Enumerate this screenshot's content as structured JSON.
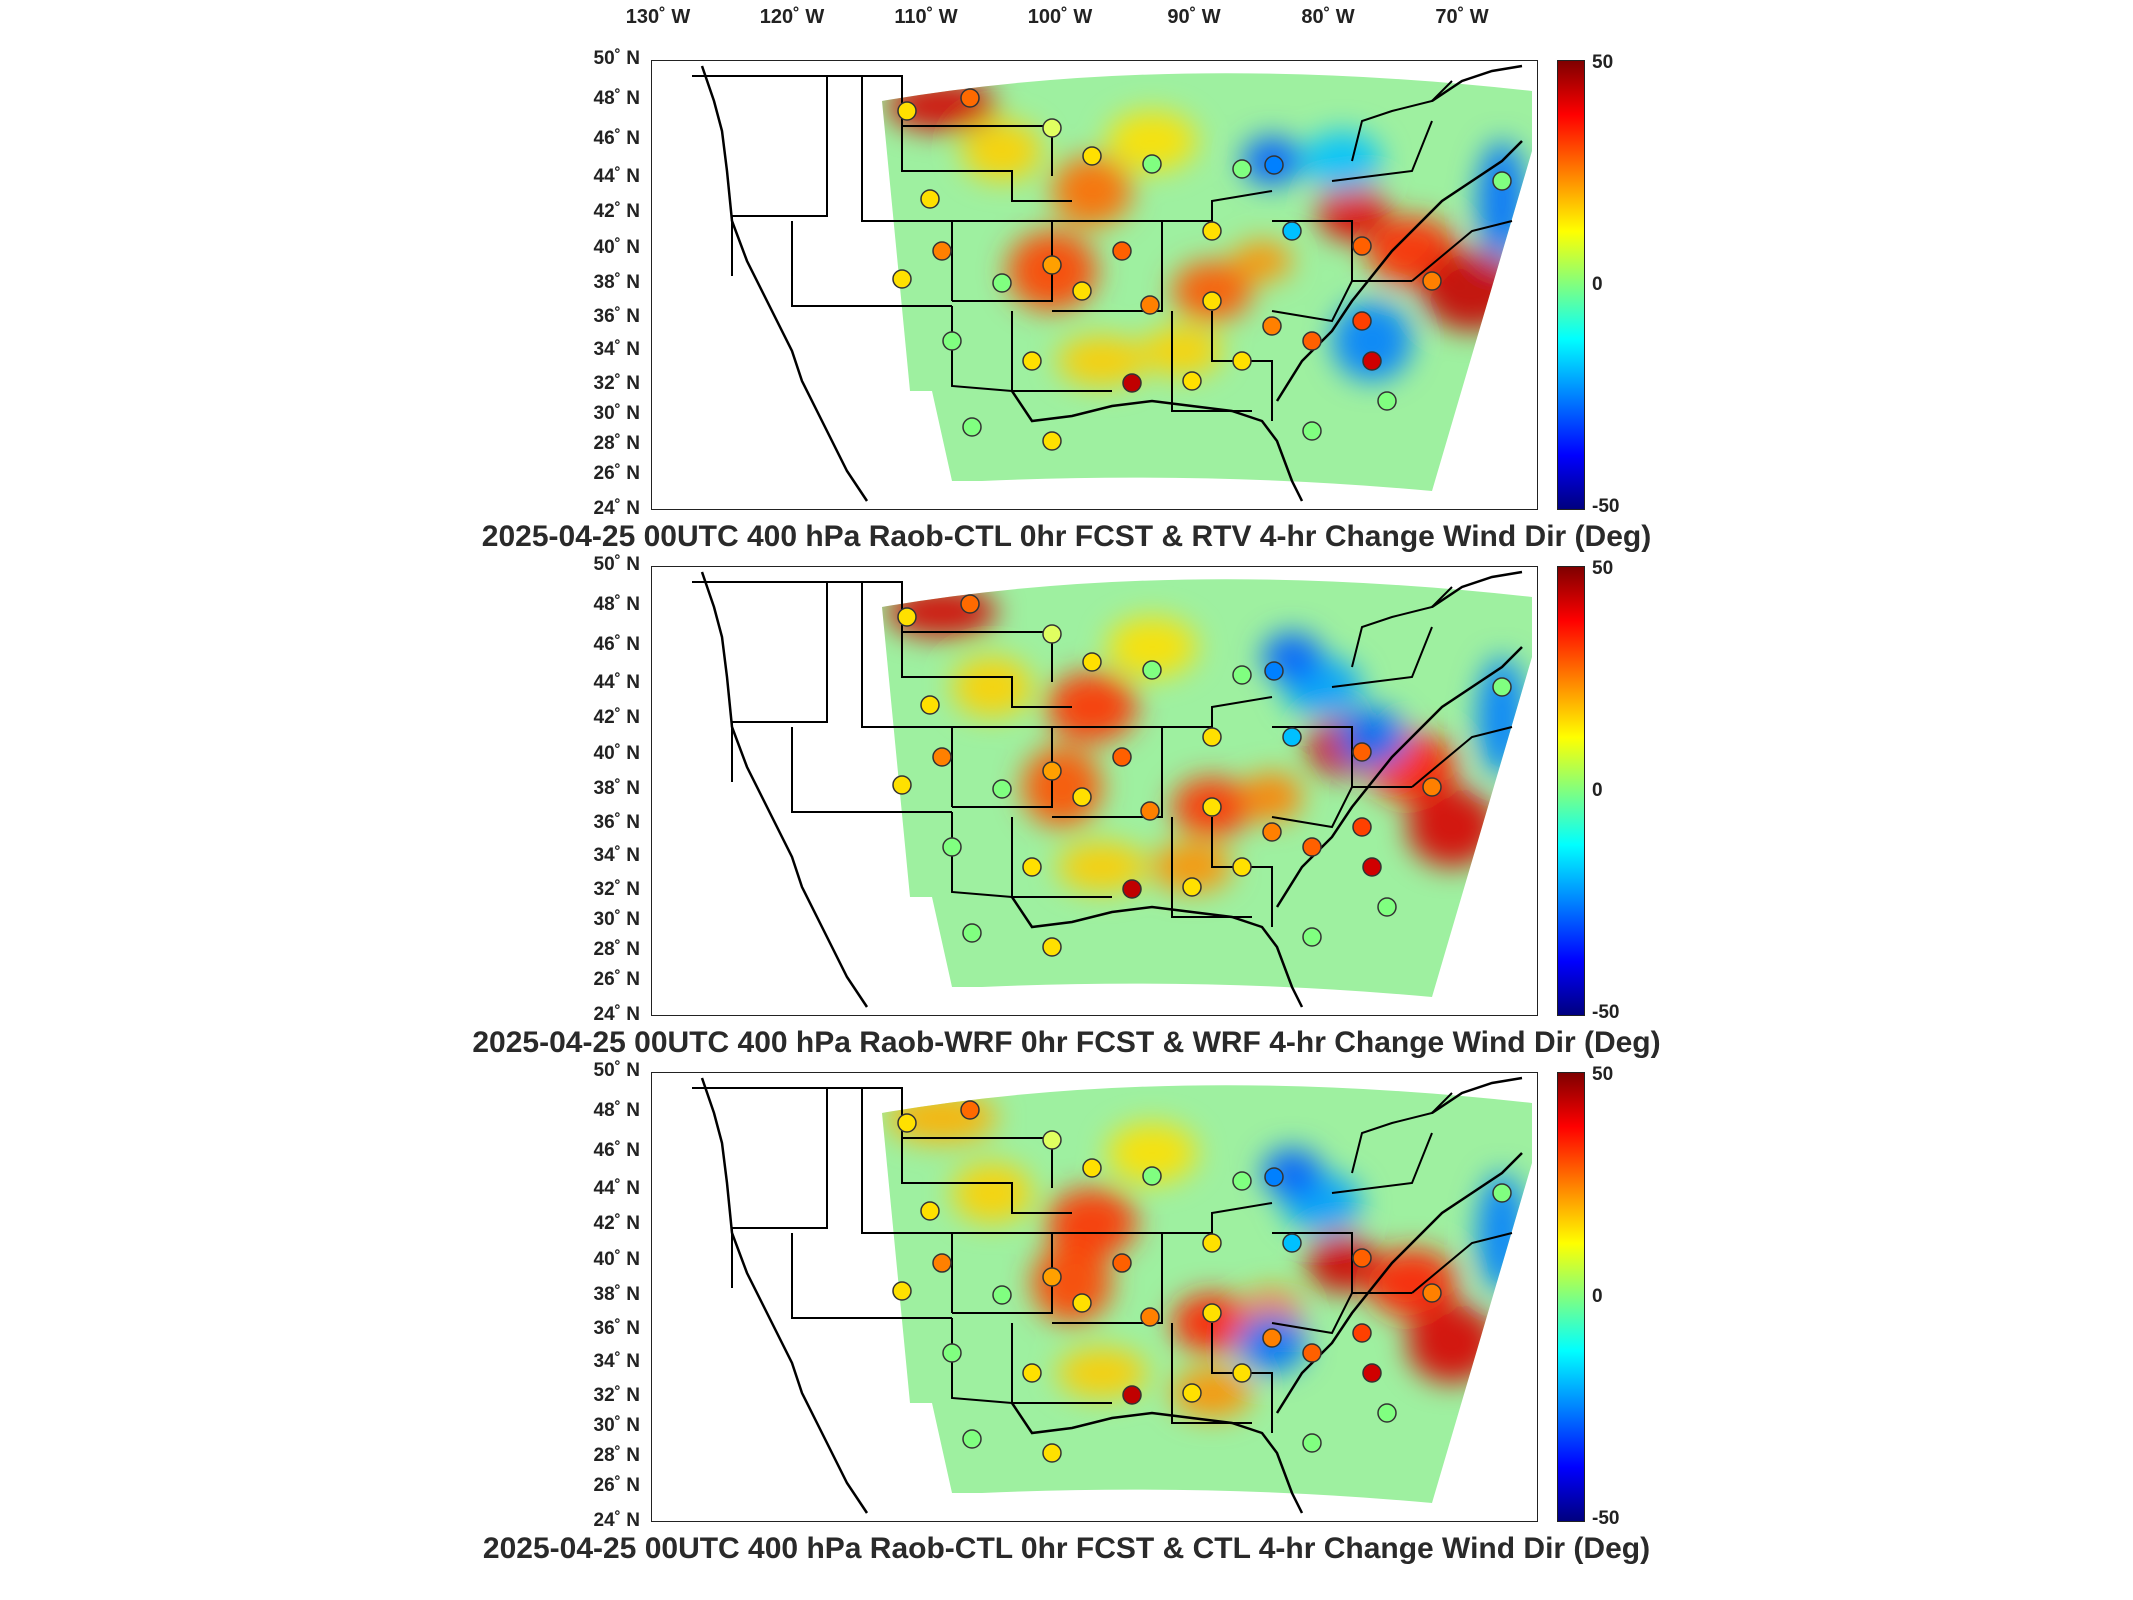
{
  "lon_labels": [
    "130˚ W",
    "120˚ W",
    "110˚ W",
    "100˚ W",
    "90˚ W",
    "80˚ W",
    "70˚ W"
  ],
  "lat_labels": [
    "50˚ N",
    "48˚ N",
    "46˚ N",
    "44˚ N",
    "42˚ N",
    "40˚ N",
    "38˚ N",
    "36˚ N",
    "34˚ N",
    "32˚ N",
    "30˚ N",
    "28˚ N",
    "26˚ N",
    "24˚ N"
  ],
  "colorbar": {
    "max_label": "50",
    "mid_label": "0",
    "min_label": "-50"
  },
  "panels": [
    {
      "title": "2025-04-25 00UTC 400 hPa Raob-CTL 0hr FCST & RTV 4-hr Change Wind Dir (Deg)"
    },
    {
      "title": "2025-04-25 00UTC 400 hPa Raob-WRF 0hr FCST & WRF 4-hr Change Wind Dir (Deg)"
    },
    {
      "title": "2025-04-25 00UTC 400 hPa Raob-CTL 0hr FCST & CTL 4-hr Change Wind Dir (Deg)"
    }
  ],
  "colors": {
    "high": "#7f0000",
    "zero": "#80ff80",
    "low": "#00007f",
    "field_base": "#9ef0a0"
  }
}
